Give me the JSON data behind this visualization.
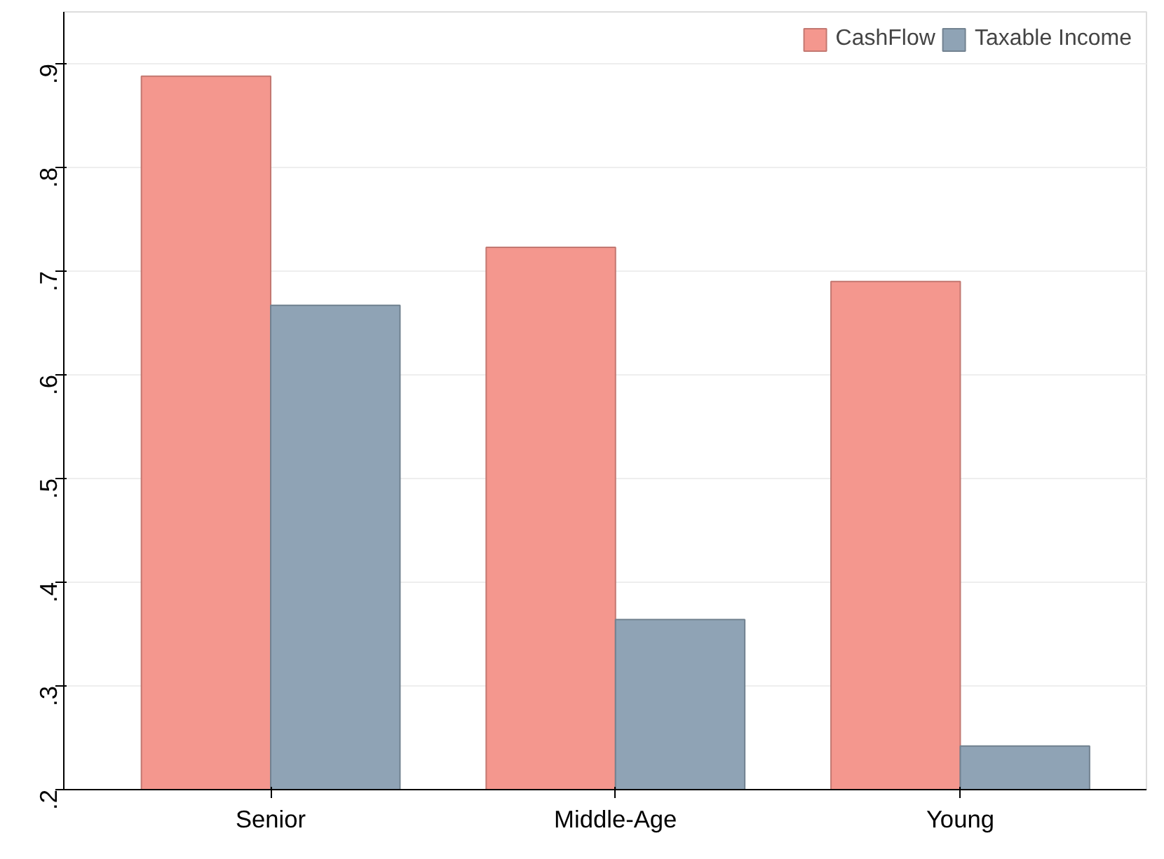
{
  "chart_data": {
    "type": "bar",
    "categories": [
      "Senior",
      "Middle-Age",
      "Young"
    ],
    "series": [
      {
        "name": "CashFlow",
        "color": "#f4978e",
        "values": [
          0.888,
          0.723,
          0.69
        ]
      },
      {
        "name": "Taxable Income",
        "color": "#8fa3b5",
        "values": [
          0.667,
          0.364,
          0.242
        ]
      }
    ],
    "ylim": [
      0.2,
      0.95
    ],
    "yticks": [
      {
        "value": 0.2,
        "label": ".2"
      },
      {
        "value": 0.3,
        "label": ".3"
      },
      {
        "value": 0.4,
        "label": ".4"
      },
      {
        "value": 0.5,
        "label": ".5"
      },
      {
        "value": 0.6,
        "label": ".6"
      },
      {
        "value": 0.7,
        "label": ".7"
      },
      {
        "value": 0.8,
        "label": ".8"
      },
      {
        "value": 0.9,
        "label": ".9"
      }
    ],
    "grid": "y",
    "legend": "top right"
  }
}
